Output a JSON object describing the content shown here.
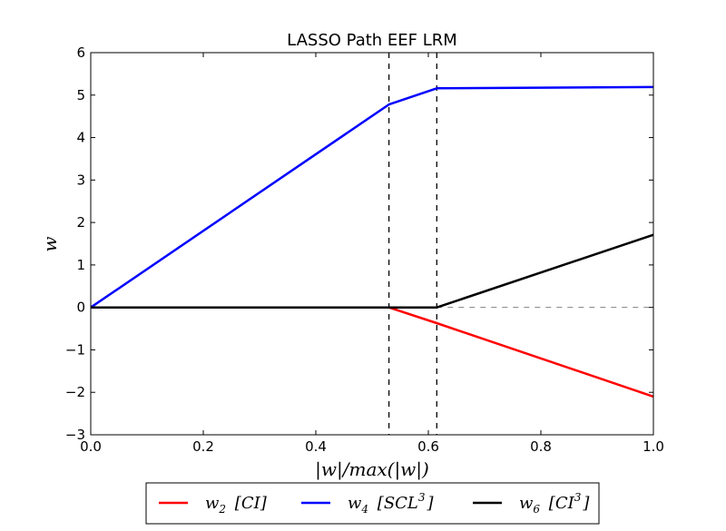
{
  "chart_data": {
    "type": "line",
    "title": "LASSO Path EEF LRM",
    "xlabel": "|w|/max(|w|)",
    "ylabel": "w",
    "xlim": [
      0.0,
      1.0
    ],
    "ylim": [
      -3,
      6
    ],
    "x_ticks": [
      "0.0",
      "0.2",
      "0.4",
      "0.6",
      "0.8",
      "1.0"
    ],
    "y_ticks": [
      "−3",
      "−2",
      "−1",
      "0",
      "1",
      "2",
      "3",
      "4",
      "5",
      "6"
    ],
    "grid": false,
    "legend_position": "below",
    "series": [
      {
        "name_main": "w",
        "name_sub": "2",
        "name_bracket": "[CI]",
        "color": "#ff0000",
        "points": [
          [
            0.0,
            0.0
          ],
          [
            0.53,
            0.0
          ],
          [
            0.615,
            -0.37
          ],
          [
            1.0,
            -2.1
          ]
        ]
      },
      {
        "name_main": "w",
        "name_sub": "4",
        "name_bracket": "[SCL",
        "name_sup": "3",
        "name_close": "]",
        "color": "#0000ff",
        "points": [
          [
            0.0,
            0.0
          ],
          [
            0.53,
            4.78
          ],
          [
            0.615,
            5.16
          ],
          [
            1.0,
            5.19
          ]
        ]
      },
      {
        "name_main": "w",
        "name_sub": "6",
        "name_bracket": "[CI",
        "name_sup": "3",
        "name_close": "]",
        "color": "#000000",
        "points": [
          [
            0.0,
            0.0
          ],
          [
            0.53,
            0.0
          ],
          [
            0.615,
            0.0
          ],
          [
            1.0,
            1.71
          ]
        ]
      }
    ],
    "vertical_dashed_lines_x": [
      0.53,
      0.615
    ],
    "zero_dashed_line": {
      "x_from": 0.615,
      "x_to": 1.0,
      "y": 0,
      "color": "#808080"
    }
  }
}
